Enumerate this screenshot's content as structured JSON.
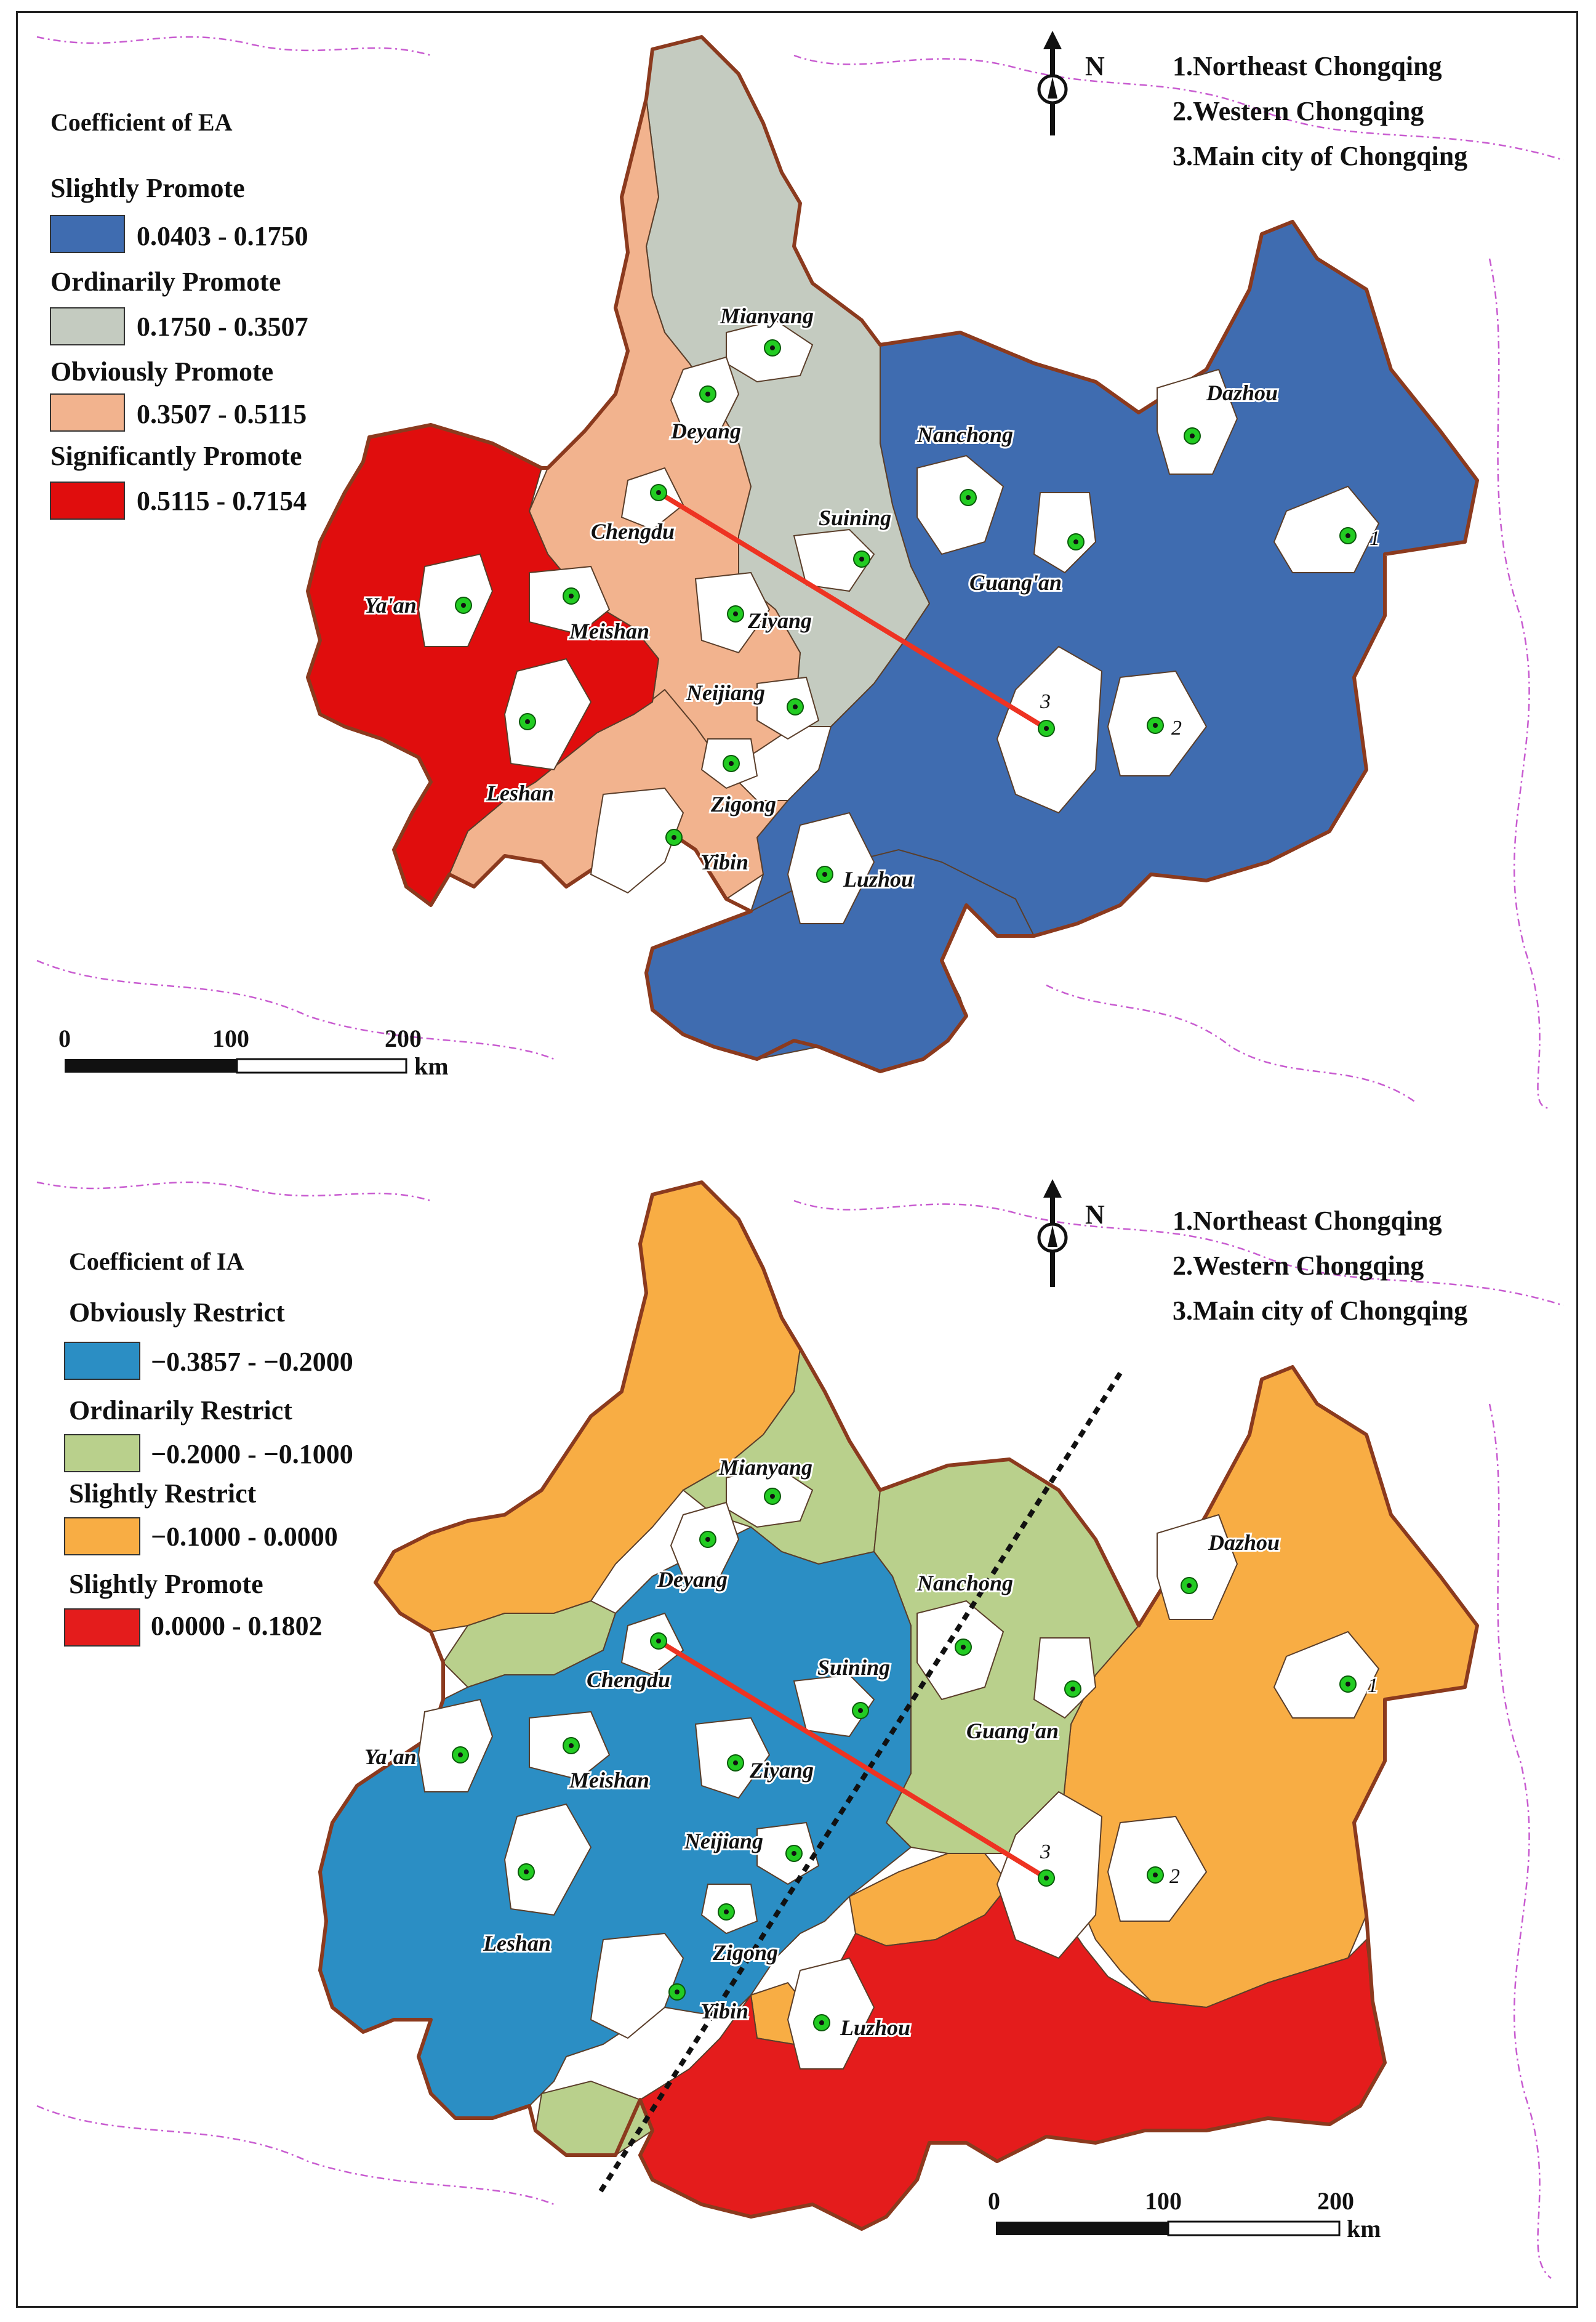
{
  "regions_note": [
    "1.Northeast Chongqing",
    "2.Western Chongqing",
    "3.Main city of Chongqing"
  ],
  "north_label": "N",
  "scale": {
    "ticks": [
      "0",
      "100",
      "200"
    ],
    "unit": "km"
  },
  "colors": {
    "ea_slight": "#3f6cb0",
    "ea_ordinary": "#c4cbc0",
    "ea_obvious": "#f2b38e",
    "ea_significant": "#e00d0d",
    "ia_obvious": "#2b8ec4",
    "ia_ordinary": "#b9d08c",
    "ia_slight": "#f8ad44",
    "ia_promote": "#e41c1c",
    "city_marker": "#22cc22",
    "line": "#ee3322"
  },
  "panel_top": {
    "legend_title": "Coefficient of  EA",
    "classes": [
      {
        "head": "Slightly Promote",
        "range": "0.0403 - 0.1750",
        "color": "#3f6cb0"
      },
      {
        "head": "Ordinarily Promote",
        "range": "0.1750 - 0.3507",
        "color": "#c4cbc0"
      },
      {
        "head": "Obviously Promote",
        "range": "0.3507 - 0.5115",
        "color": "#f2b38e"
      },
      {
        "head": "Significantly Promote",
        "range": "0.5115 - 0.7154",
        "color": "#e00d0d"
      }
    ]
  },
  "panel_bottom": {
    "legend_title": "Coefficient of  IA",
    "classes": [
      {
        "head": "Obviously Restrict",
        "range": "−0.3857 - −0.2000",
        "color": "#2b8ec4"
      },
      {
        "head": "Ordinarily Restrict",
        "range": "−0.2000 - −0.1000",
        "color": "#b9d08c"
      },
      {
        "head": "Slightly Restrict",
        "range": "−0.1000 - 0.0000",
        "color": "#f8ad44"
      },
      {
        "head": "Slightly Promote",
        "range": "0.0000 - 0.1802",
        "color": "#e41c1c"
      }
    ]
  },
  "cities": [
    "Mianyang",
    "Deyang",
    "Nanchong",
    "Dazhou",
    "Chengdu",
    "Suining",
    "Guang'an",
    "Ya'an",
    "Meishan",
    "Ziyang",
    "Neijiang",
    "Leshan",
    "Zigong",
    "Yibin",
    "Luzhou",
    "1",
    "2",
    "3"
  ]
}
